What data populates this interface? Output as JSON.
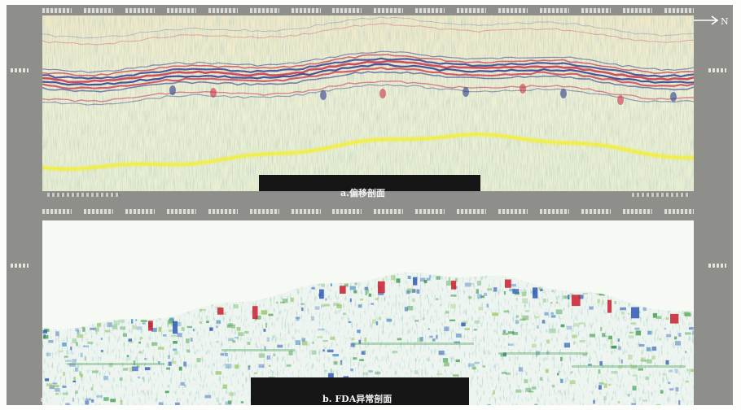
{
  "panel_a": {
    "caption": "a.偏移剖面"
  },
  "panel_b": {
    "caption": "b. FDA异常剖面"
  },
  "north_arrow": {
    "label": "N"
  },
  "colors": {
    "frame": "#8e8f8a",
    "seismic_background": "#eef0dc",
    "horizon_red": "#c8324a",
    "horizon_blue": "#2c3a8c",
    "horizon_yellow": "#f2ee3c",
    "anomaly_red": "#c81e2e",
    "anomaly_green": "#3d9a4c",
    "anomaly_blue": "#2e58b4",
    "caption_bar": "#161616"
  }
}
